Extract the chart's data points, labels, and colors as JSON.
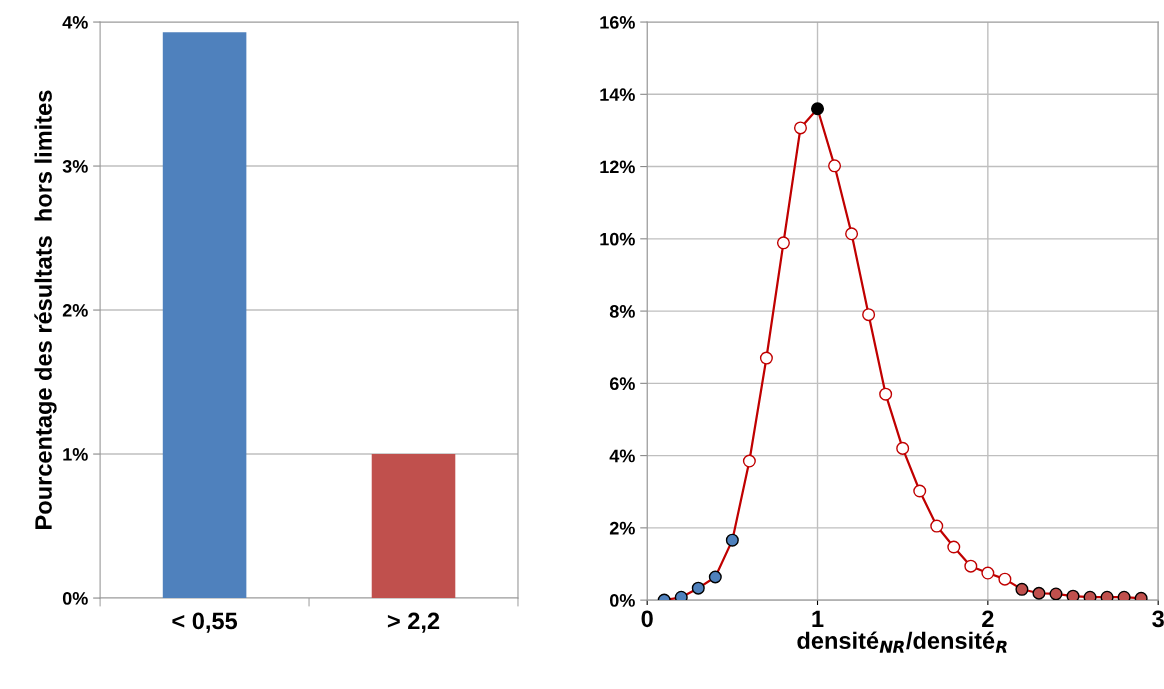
{
  "chart_data": [
    {
      "type": "bar",
      "ylabel": "Pourcentage des résultats  hors limites",
      "categories": [
        "< 0,55",
        "> 2,2"
      ],
      "values": [
        3.93,
        1.0
      ],
      "colors": [
        "#4f81bd",
        "#c0504d"
      ],
      "ylim": [
        0,
        4
      ],
      "yticks": [
        {
          "value": 0,
          "label": "0%"
        },
        {
          "value": 1,
          "label": "1%"
        },
        {
          "value": 2,
          "label": "2%"
        },
        {
          "value": 3,
          "label": "3%"
        },
        {
          "value": 4,
          "label": "4%"
        }
      ],
      "grid": "y"
    },
    {
      "type": "line",
      "xlabel": "densité$_{NR}$/densité$_{R}$",
      "marker": "circle",
      "line_style": "solid",
      "x": [
        0.1,
        0.2,
        0.3,
        0.4,
        0.5,
        0.6,
        0.7,
        0.8,
        0.9,
        1.0,
        1.1,
        1.2,
        1.3,
        1.4,
        1.5,
        1.6,
        1.7,
        1.8,
        1.9,
        2.0,
        2.1,
        2.2,
        2.3,
        2.4,
        2.5,
        2.6,
        2.7,
        2.8,
        2.9
      ],
      "series": [
        {
          "color": "#c00000",
          "values": [
            0.0,
            0.08,
            0.33,
            0.64,
            1.66,
            3.85,
            6.7,
            9.89,
            13.07,
            13.6,
            12.02,
            10.14,
            7.9,
            5.7,
            4.2,
            3.02,
            2.05,
            1.47,
            0.94,
            0.75,
            0.58,
            0.3,
            0.19,
            0.17,
            0.11,
            0.08,
            0.08,
            0.08,
            0.05
          ],
          "colors": [
            "#4f81bd",
            "#4f81bd",
            "#4f81bd",
            "#4f81bd",
            "#4f81bd",
            "#ffffff",
            "#ffffff",
            "#ffffff",
            "#ffffff",
            "#000000",
            "#ffffff",
            "#ffffff",
            "#ffffff",
            "#ffffff",
            "#ffffff",
            "#ffffff",
            "#ffffff",
            "#ffffff",
            "#ffffff",
            "#ffffff",
            "#ffffff",
            "#c0504d",
            "#c0504d",
            "#c0504d",
            "#c0504d",
            "#c0504d",
            "#c0504d",
            "#c0504d",
            "#c0504d"
          ]
        }
      ],
      "xlim": [
        0,
        3
      ],
      "xticks": [
        0,
        1,
        2,
        3
      ],
      "ylim": [
        0,
        16
      ],
      "yticks": [
        {
          "value": 0,
          "label": "0%"
        },
        {
          "value": 2,
          "label": "2%"
        },
        {
          "value": 4,
          "label": "4%"
        },
        {
          "value": 6,
          "label": "6%"
        },
        {
          "value": 8,
          "label": "8%"
        },
        {
          "value": 10,
          "label": "10%"
        },
        {
          "value": 12,
          "label": "12%"
        },
        {
          "value": 14,
          "label": "14%"
        },
        {
          "value": 16,
          "label": "16%"
        }
      ],
      "grid": true
    }
  ]
}
